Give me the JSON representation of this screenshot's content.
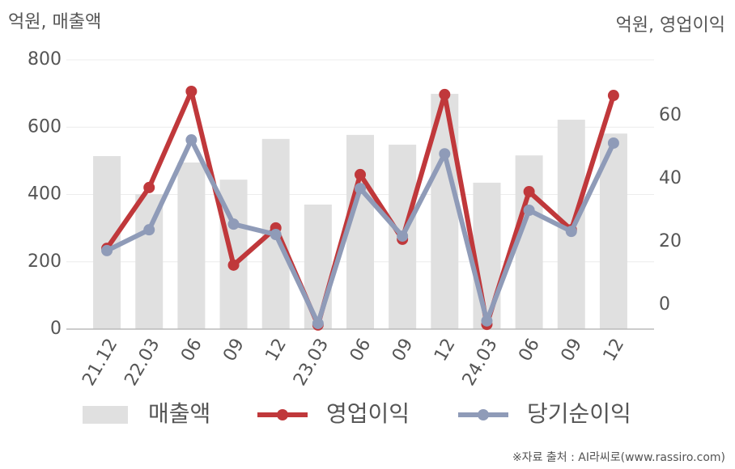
{
  "chart_data": {
    "type": "combo",
    "y_label": "억원, 매출액",
    "y2_label": "억원, 영업이익",
    "source": "※자료 출처 : AI라씨로(www.rassiro.com)",
    "categories": [
      "21.12",
      "22.03",
      "06",
      "09",
      "12",
      "23.03",
      "06",
      "09",
      "12",
      "24.03",
      "06",
      "09",
      "12"
    ],
    "series": [
      {
        "name": "매출액",
        "type": "bar",
        "color": "#e0e0e0",
        "values": [
          514,
          401,
          495,
          444,
          565,
          370,
          577,
          548,
          699,
          435,
          516,
          622,
          581
        ]
      },
      {
        "name": "영업이익",
        "type": "line",
        "axis": "y2",
        "color": "#c0383b",
        "values": [
          17.9,
          37.2,
          67.7,
          12.6,
          24.4,
          -6.4,
          41.3,
          20.8,
          66.7,
          -6.2,
          35.9,
          23.8,
          66.4
        ]
      },
      {
        "name": "당기순이익",
        "type": "line",
        "axis": "y2",
        "color": "#8f9bb8",
        "values": [
          17.2,
          23.8,
          52.3,
          25.6,
          22.3,
          -5.9,
          36.9,
          21.8,
          47.9,
          -5.1,
          30.0,
          23.3,
          51.3
        ]
      }
    ],
    "ylim": [
      0,
      800
    ],
    "yticks": [
      0,
      200,
      400,
      600,
      800
    ],
    "y2lim": [
      -7.7,
      77.7
    ],
    "y2ticks": [
      0,
      20,
      40,
      60
    ],
    "grid": true,
    "legend": "bottom"
  }
}
